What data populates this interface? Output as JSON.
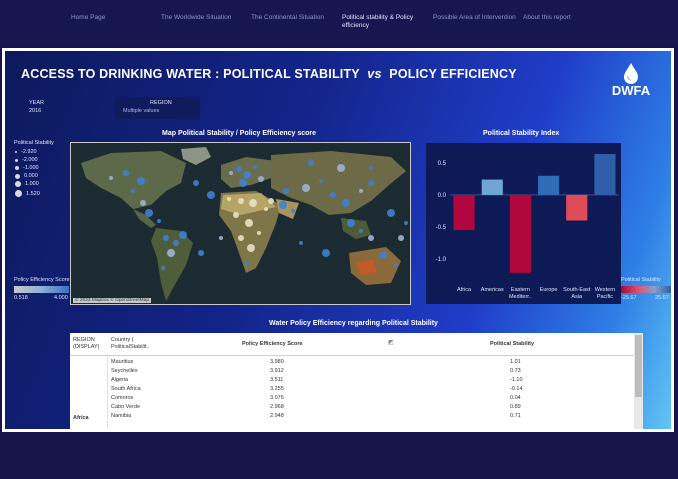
{
  "nav": {
    "items": [
      "Home Page",
      "The Worldwide Situation",
      "The Continental Situation",
      "Political stability & Policy efficiency",
      "Possible Area of Intervention",
      "About this report"
    ]
  },
  "dashboard": {
    "title_part1": "ACCESS TO DRINKING WATER :  POLITICAL STABILITY",
    "title_vs": "vs",
    "title_part2": "POLICY EFFICIENCY",
    "logo_text": "DWFA"
  },
  "filters": {
    "year_label": "YEAR",
    "year_value": "2016",
    "region_label": "REGION",
    "region_value": "Multiple values"
  },
  "size_legend": {
    "title": "Political Stability",
    "items": [
      "-2.920",
      "-2.000",
      "-1.000",
      "0.000",
      "1.000",
      "1.520"
    ]
  },
  "map": {
    "title": "Map Political Stability / Policy Efficiency score",
    "copyright": "© 2023 Mapbox © OpenStreetMap"
  },
  "pe_legend": {
    "title": "Policy Efficiency Score",
    "min": "0.518",
    "max": "4.000"
  },
  "ps_legend": {
    "title": "Political Stability",
    "min": "-25.67",
    "max": "25.67"
  },
  "chart_data": {
    "type": "bar",
    "title": "Political Stability Index",
    "categories": [
      "Africa",
      "Americas",
      "Eastern Mediterr..",
      "Europe",
      "South-East Asia",
      "Western Pacific"
    ],
    "values": [
      -0.55,
      0.24,
      -1.22,
      0.3,
      -0.4,
      0.64
    ],
    "yticks": [
      "0.5",
      "0.0",
      "-0.5",
      "-1.0"
    ],
    "ylim": [
      -1.3,
      0.75
    ],
    "colors": [
      "#b0073f",
      "#6fa6d6",
      "#b0073f",
      "#2f6cb8",
      "#e04b58",
      "#2f5fa8"
    ]
  },
  "table": {
    "title": "Water Policy Efficiency regarding Political Stability",
    "headers": {
      "region": "REGION (DISPLAY)",
      "country": "Country ( PoliticalStabilit..",
      "pe": "Policy Efficiency Score",
      "ps": "Political Stability"
    },
    "group_label": "Africa",
    "rows": [
      {
        "country": "Mauritius",
        "pe": "3.980",
        "ps": "1.01"
      },
      {
        "country": "Seychelles",
        "pe": "3.912",
        "ps": "0.73"
      },
      {
        "country": "Algeria",
        "pe": "3.511",
        "ps": "-1.10"
      },
      {
        "country": "South Africa",
        "pe": "3.255",
        "ps": "-0.14"
      },
      {
        "country": "Comoros",
        "pe": "3.076",
        "ps": "0.04"
      },
      {
        "country": "Cabo Verde",
        "pe": "2.968",
        "ps": "0.89"
      },
      {
        "country": "Namibia",
        "pe": "2.948",
        "ps": "0.71"
      }
    ]
  }
}
